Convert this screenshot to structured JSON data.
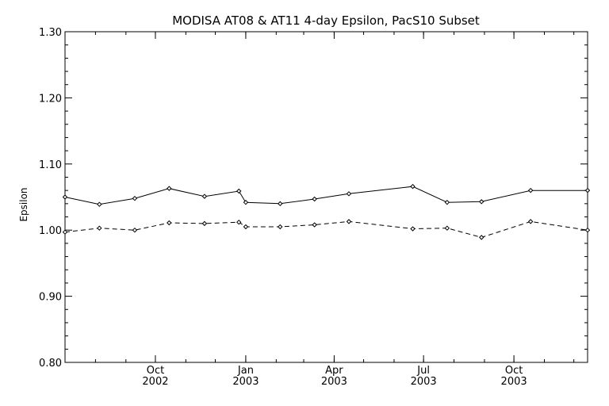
{
  "chart_data": {
    "type": "line",
    "title": "MODISA AT08 & AT11 4-day Epsilon, PacS10 Subset",
    "xlabel": "",
    "ylabel": "Epsilon",
    "ylim": [
      0.8,
      1.3
    ],
    "xlim": [
      "2002-07-01",
      "2003-12-15"
    ],
    "y_ticks": [
      "0.80",
      "0.90",
      "1.00",
      "1.10",
      "1.20",
      "1.30"
    ],
    "x_ticks": [
      {
        "date": "2002-10-01",
        "month": "Oct",
        "year": "2002"
      },
      {
        "date": "2003-01-01",
        "month": "Jan",
        "year": "2003"
      },
      {
        "date": "2003-04-01",
        "month": "Apr",
        "year": "2003"
      },
      {
        "date": "2003-07-01",
        "month": "Jul",
        "year": "2003"
      },
      {
        "date": "2003-10-01",
        "month": "Oct",
        "year": "2003"
      }
    ],
    "grid": false,
    "series": [
      {
        "style": "solid",
        "points": [
          [
            "2002-07-01",
            1.05
          ],
          [
            "2002-08-05",
            1.039
          ],
          [
            "2002-09-10",
            1.048
          ],
          [
            "2002-10-15",
            1.063
          ],
          [
            "2002-11-20",
            1.051
          ],
          [
            "2002-12-25",
            1.059
          ],
          [
            "2003-01-01",
            1.042
          ],
          [
            "2003-02-05",
            1.04
          ],
          [
            "2003-03-12",
            1.047
          ],
          [
            "2003-04-16",
            1.055
          ],
          [
            "2003-06-20",
            1.066
          ],
          [
            "2003-07-25",
            1.042
          ],
          [
            "2003-08-29",
            1.043
          ],
          [
            "2003-10-18",
            1.06
          ],
          [
            "2003-12-15",
            1.06
          ]
        ]
      },
      {
        "style": "dashed",
        "points": [
          [
            "2002-07-01",
            0.997
          ],
          [
            "2002-08-05",
            1.003
          ],
          [
            "2002-09-10",
            1.0
          ],
          [
            "2002-10-15",
            1.011
          ],
          [
            "2002-11-20",
            1.01
          ],
          [
            "2002-12-25",
            1.012
          ],
          [
            "2003-01-01",
            1.005
          ],
          [
            "2003-02-05",
            1.005
          ],
          [
            "2003-03-12",
            1.008
          ],
          [
            "2003-04-16",
            1.013
          ],
          [
            "2003-06-20",
            1.002
          ],
          [
            "2003-07-25",
            1.003
          ],
          [
            "2003-08-29",
            0.989
          ],
          [
            "2003-10-18",
            1.013
          ],
          [
            "2003-12-15",
            1.0
          ]
        ]
      }
    ]
  }
}
